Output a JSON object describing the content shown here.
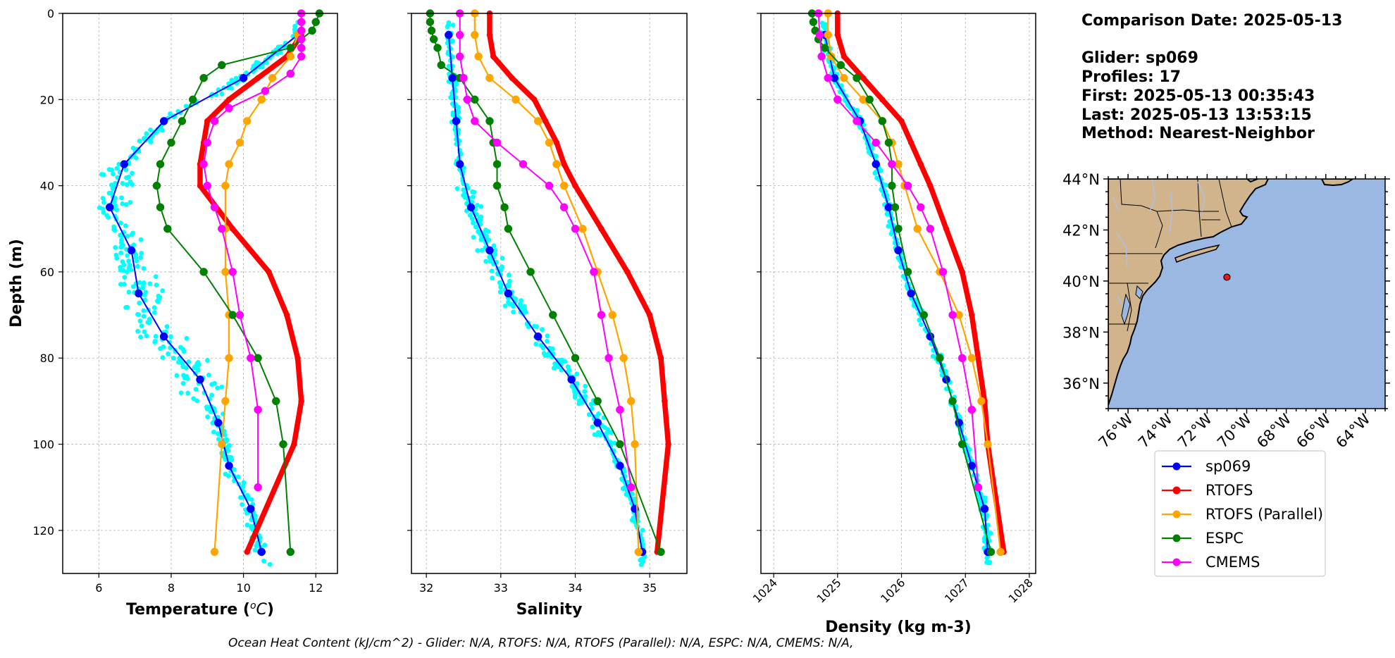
{
  "colors": {
    "sp069": "#0000ff",
    "RTOFS": "#ff0000",
    "RTOFS (Parallel)": "#ffa500",
    "ESPC": "#008000",
    "CMEMS": "#ff00ff",
    "glider_scatter": "#00ffff",
    "land": "#d2b48c",
    "ocean": "#9bb8e3",
    "grid": "#b0b0b0"
  },
  "info": {
    "comparison_date": "Comparison Date: 2025-05-13",
    "glider": "Glider: sp069",
    "profiles": "Profiles: 17",
    "first": "First: 2025-05-13 00:35:43",
    "last": "Last: 2025-05-13 13:53:15",
    "method": "Method: Nearest-Neighbor"
  },
  "footer": "Ocean Heat Content (kJ/cm^2) - Glider: N/A,  RTOFS: N/A,  RTOFS (Parallel): N/A,  ESPC: N/A,  CMEMS: N/A,",
  "legend": [
    "sp069",
    "RTOFS",
    "RTOFS (Parallel)",
    "ESPC",
    "CMEMS"
  ],
  "map": {
    "lat_ticks": [
      "44°N",
      "42°N",
      "40°N",
      "38°N",
      "36°N"
    ],
    "lon_ticks": [
      "76°W",
      "74°W",
      "72°W",
      "70°W",
      "68°W",
      "66°W",
      "64°W"
    ],
    "lat_range": [
      35,
      44
    ],
    "lon_range": [
      -77,
      -63
    ],
    "glider_position": {
      "lon": -71.0,
      "lat": 40.15
    }
  },
  "chart_data": [
    {
      "type": "line",
      "xlabel": "Temperature (°C)",
      "ylabel": "Depth (m)",
      "xlim": [
        5,
        12.6
      ],
      "ylim": [
        130,
        0
      ],
      "xticks": [
        6,
        8,
        10,
        12
      ],
      "yticks": [
        0,
        20,
        40,
        60,
        80,
        100,
        120
      ],
      "grid": true,
      "series": [
        {
          "name": "sp069",
          "depth": [
            5,
            15,
            25,
            35,
            45,
            55,
            65,
            75,
            85,
            95,
            105,
            115,
            125
          ],
          "values": [
            11.5,
            10.0,
            7.8,
            6.7,
            6.3,
            6.9,
            7.1,
            7.8,
            8.8,
            9.3,
            9.6,
            10.2,
            10.5
          ]
        },
        {
          "name": "RTOFS",
          "depth": [
            5,
            10,
            15,
            20,
            25,
            30,
            35,
            40,
            50,
            60,
            70,
            80,
            90,
            100,
            125
          ],
          "values": [
            11.6,
            11.2,
            10.4,
            9.6,
            9.0,
            8.9,
            8.8,
            8.8,
            9.7,
            10.7,
            11.2,
            11.5,
            11.6,
            11.4,
            10.1
          ]
        },
        {
          "name": "RTOFS (Parallel)",
          "depth": [
            5,
            10,
            15,
            20,
            25,
            30,
            35,
            40,
            50,
            60,
            70,
            80,
            90,
            100,
            125
          ],
          "values": [
            11.5,
            11.3,
            10.8,
            10.5,
            10.1,
            9.9,
            9.6,
            9.5,
            9.5,
            9.5,
            9.6,
            9.6,
            9.5,
            9.4,
            9.2
          ]
        },
        {
          "name": "ESPC",
          "depth": [
            0,
            2,
            4,
            6,
            8,
            12,
            15,
            20,
            25,
            30,
            35,
            40,
            45,
            50,
            60,
            70,
            80,
            90,
            100,
            125
          ],
          "values": [
            12.1,
            12.0,
            11.9,
            11.6,
            11.3,
            9.4,
            8.9,
            8.6,
            8.3,
            8.0,
            7.7,
            7.6,
            7.7,
            7.9,
            8.9,
            9.7,
            10.4,
            10.9,
            11.1,
            11.3
          ]
        },
        {
          "name": "CMEMS",
          "depth": [
            0,
            2,
            4,
            6,
            8,
            10,
            14,
            18,
            22,
            25,
            30,
            35,
            40,
            45,
            50,
            60,
            70,
            80,
            92,
            110
          ],
          "values": [
            11.6,
            11.6,
            11.6,
            11.6,
            11.6,
            11.6,
            11.3,
            10.6,
            9.6,
            9.2,
            9.0,
            8.9,
            9.0,
            9.2,
            9.4,
            9.7,
            9.9,
            10.2,
            10.4,
            10.4
          ]
        }
      ]
    },
    {
      "type": "line",
      "xlabel": "Salinity",
      "xlim": [
        31.8,
        35.5
      ],
      "ylim": [
        130,
        0
      ],
      "xticks": [
        32,
        33,
        34,
        35
      ],
      "yticks": [
        0,
        20,
        40,
        60,
        80,
        100,
        120
      ],
      "grid": true,
      "series": [
        {
          "name": "sp069",
          "depth": [
            5,
            15,
            25,
            35,
            45,
            55,
            65,
            75,
            85,
            95,
            105,
            115,
            125
          ],
          "values": [
            32.3,
            32.35,
            32.4,
            32.45,
            32.6,
            32.85,
            33.1,
            33.5,
            33.95,
            34.3,
            34.6,
            34.8,
            34.9
          ]
        },
        {
          "name": "RTOFS",
          "depth": [
            0,
            5,
            10,
            15,
            20,
            25,
            30,
            35,
            40,
            50,
            60,
            70,
            80,
            90,
            100,
            125
          ],
          "values": [
            32.85,
            32.85,
            32.9,
            33.15,
            33.45,
            33.6,
            33.75,
            33.85,
            34.0,
            34.35,
            34.7,
            35.0,
            35.15,
            35.2,
            35.25,
            35.1
          ]
        },
        {
          "name": "RTOFS (Parallel)",
          "depth": [
            0,
            5,
            10,
            15,
            20,
            25,
            30,
            35,
            40,
            50,
            60,
            70,
            80,
            90,
            100,
            125
          ],
          "values": [
            32.65,
            32.65,
            32.7,
            32.85,
            33.2,
            33.5,
            33.65,
            33.75,
            33.85,
            34.1,
            34.3,
            34.5,
            34.65,
            34.75,
            34.8,
            34.85
          ]
        },
        {
          "name": "ESPC",
          "depth": [
            0,
            2,
            4,
            6,
            8,
            12,
            15,
            20,
            25,
            30,
            35,
            40,
            45,
            50,
            60,
            70,
            80,
            90,
            100,
            125
          ],
          "values": [
            32.05,
            32.05,
            32.07,
            32.1,
            32.15,
            32.2,
            32.45,
            32.65,
            32.85,
            32.9,
            32.95,
            32.95,
            33.05,
            33.1,
            33.4,
            33.7,
            34.0,
            34.3,
            34.6,
            35.15
          ]
        },
        {
          "name": "CMEMS",
          "depth": [
            0,
            5,
            10,
            15,
            20,
            25,
            30,
            35,
            40,
            45,
            50,
            60,
            70,
            80,
            92,
            110
          ],
          "values": [
            32.45,
            32.45,
            32.45,
            32.5,
            32.55,
            32.65,
            32.95,
            33.3,
            33.65,
            33.85,
            34.0,
            34.25,
            34.35,
            34.45,
            34.6,
            34.75
          ]
        }
      ]
    },
    {
      "type": "line",
      "xlabel": "Density (kg m-3)",
      "xlim": [
        1023.8,
        1028.1
      ],
      "ylim": [
        130,
        0
      ],
      "xticks": [
        1024,
        1025,
        1026,
        1027,
        1028
      ],
      "yticks": [
        0,
        20,
        40,
        60,
        80,
        100,
        120
      ],
      "grid": true,
      "series": [
        {
          "name": "sp069",
          "depth": [
            5,
            15,
            25,
            35,
            45,
            55,
            65,
            75,
            85,
            95,
            105,
            115,
            125
          ],
          "values": [
            1024.8,
            1024.95,
            1025.35,
            1025.6,
            1025.8,
            1025.95,
            1026.15,
            1026.45,
            1026.7,
            1026.9,
            1027.1,
            1027.3,
            1027.35
          ]
        },
        {
          "name": "RTOFS",
          "depth": [
            0,
            5,
            10,
            15,
            20,
            25,
            30,
            35,
            40,
            50,
            60,
            70,
            80,
            90,
            100,
            125
          ],
          "values": [
            1025.0,
            1025.0,
            1025.1,
            1025.4,
            1025.7,
            1026.0,
            1026.15,
            1026.3,
            1026.45,
            1026.7,
            1026.95,
            1027.1,
            1027.2,
            1027.3,
            1027.35,
            1027.6
          ]
        },
        {
          "name": "RTOFS (Parallel)",
          "depth": [
            0,
            5,
            10,
            15,
            20,
            25,
            30,
            35,
            40,
            50,
            60,
            70,
            80,
            90,
            100,
            125
          ],
          "values": [
            1024.85,
            1024.85,
            1024.9,
            1025.1,
            1025.4,
            1025.7,
            1025.85,
            1025.95,
            1026.05,
            1026.25,
            1026.6,
            1026.9,
            1027.1,
            1027.25,
            1027.35,
            1027.55
          ]
        },
        {
          "name": "ESPC",
          "depth": [
            0,
            2,
            4,
            6,
            8,
            12,
            15,
            20,
            25,
            30,
            35,
            40,
            45,
            50,
            60,
            70,
            80,
            90,
            100,
            125
          ],
          "values": [
            1024.6,
            1024.62,
            1024.65,
            1024.7,
            1024.8,
            1025.05,
            1025.3,
            1025.5,
            1025.7,
            1025.8,
            1025.85,
            1025.85,
            1025.9,
            1025.95,
            1026.1,
            1026.35,
            1026.6,
            1026.8,
            1026.95,
            1027.4
          ]
        },
        {
          "name": "CMEMS",
          "depth": [
            0,
            5,
            10,
            15,
            20,
            25,
            30,
            35,
            40,
            45,
            50,
            60,
            70,
            80,
            92,
            110
          ],
          "values": [
            1024.7,
            1024.72,
            1024.75,
            1024.85,
            1025.0,
            1025.3,
            1025.6,
            1025.85,
            1026.1,
            1026.3,
            1026.45,
            1026.65,
            1026.8,
            1026.95,
            1027.1,
            1027.2
          ]
        }
      ]
    }
  ]
}
